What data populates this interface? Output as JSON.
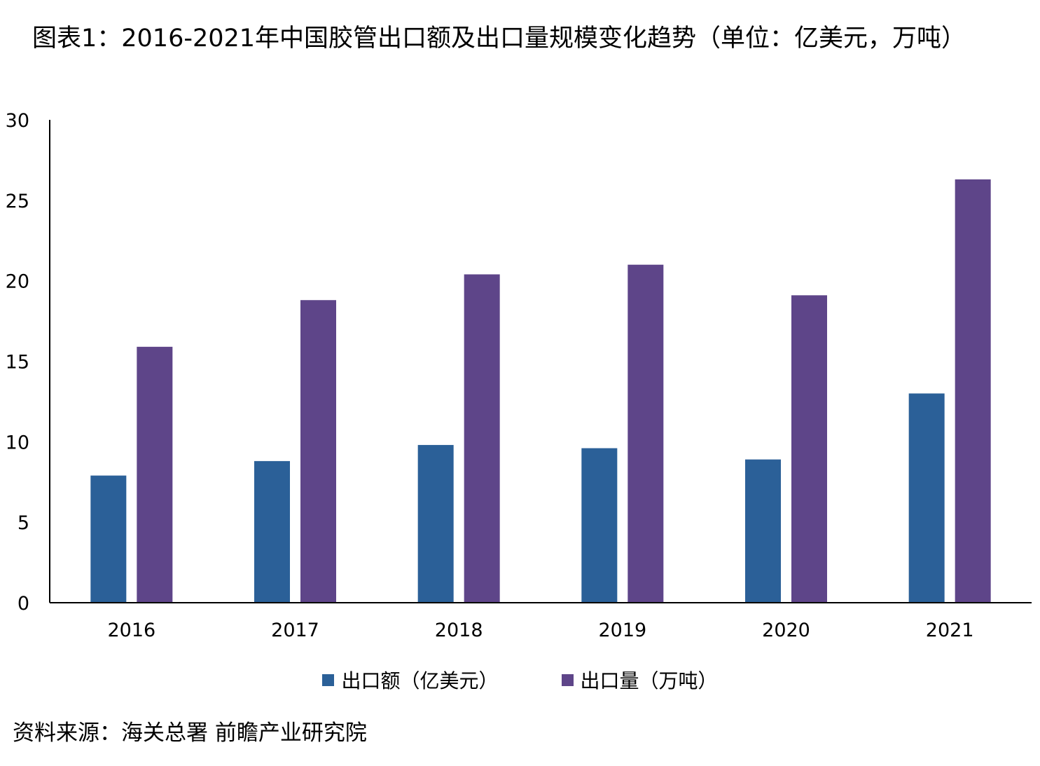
{
  "title": "图表1：2016-2021年中国胶管出口额及出口量规模变化趋势（单位：亿美元，万吨）",
  "source": "资料来源：海关总署 前瞻产业研究院",
  "colors": {
    "series_0": "#2b6098",
    "series_1": "#5e4589",
    "axis": "#000000"
  },
  "chart_data": {
    "type": "bar",
    "categories": [
      "2016",
      "2017",
      "2018",
      "2019",
      "2020",
      "2021"
    ],
    "series": [
      {
        "name": "出口额（亿美元）",
        "values": [
          7.9,
          8.8,
          9.8,
          9.6,
          8.9,
          13.0
        ]
      },
      {
        "name": "出口量（万吨）",
        "values": [
          15.9,
          18.8,
          20.4,
          21.0,
          19.1,
          26.3
        ]
      }
    ],
    "y_ticks": [
      "0",
      "5",
      "10",
      "15",
      "20",
      "25",
      "30"
    ],
    "ylim": [
      0,
      30
    ],
    "grid": false,
    "legend": "bottom-center"
  }
}
